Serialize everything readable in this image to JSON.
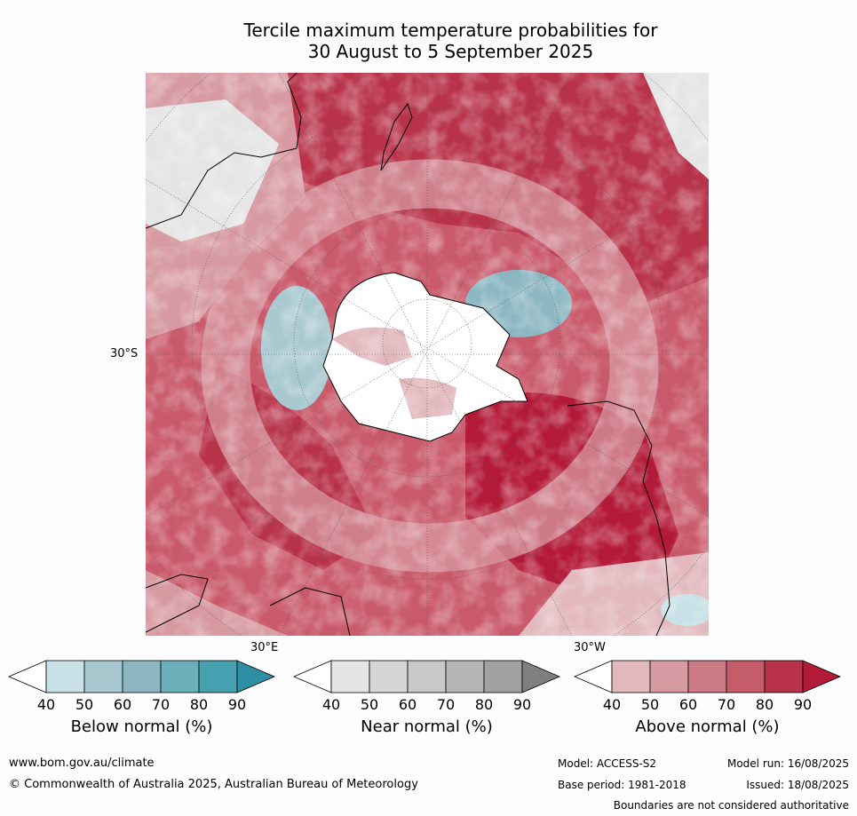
{
  "title_line1": "Tercile maximum temperature probabilities for",
  "title_line2": "30 August to 5 September 2025",
  "map": {
    "lat_label": "30°S",
    "lon_label_east": "30°E",
    "lon_label_west": "30°W"
  },
  "colorbars": [
    {
      "label": "Below normal (%)",
      "ticks": [
        "40",
        "50",
        "60",
        "70",
        "80",
        "90"
      ],
      "colors": [
        "#ffffff",
        "#c7e1e6",
        "#a8c8cf",
        "#8cb7c2",
        "#6caeb9",
        "#46a0b0",
        "#2e8ea3"
      ]
    },
    {
      "label": "Near normal (%)",
      "ticks": [
        "40",
        "50",
        "60",
        "70",
        "80",
        "90"
      ],
      "colors": [
        "#ffffff",
        "#e5e5e5",
        "#d6d6d6",
        "#c8c8c8",
        "#b5b5b5",
        "#a1a1a1",
        "#7f7f7f"
      ]
    },
    {
      "label": "Above normal (%)",
      "ticks": [
        "40",
        "50",
        "60",
        "70",
        "80",
        "90"
      ],
      "colors": [
        "#ffffff",
        "#e2b8bd",
        "#d79aa2",
        "#cc7a85",
        "#c45c6a",
        "#b8334a",
        "#b31a38"
      ]
    }
  ],
  "footer": {
    "url": "www.bom.gov.au/climate",
    "copyright": "© Commonwealth of Australia 2025, Australian Bureau of Meteorology",
    "model": "Model: ACCESS-S2",
    "model_run": "Model run: 16/08/2025",
    "base_period": "Base period: 1981-2018",
    "issued": "Issued: 18/08/2025",
    "disclaimer": "Boundaries are not considered authoritative"
  }
}
